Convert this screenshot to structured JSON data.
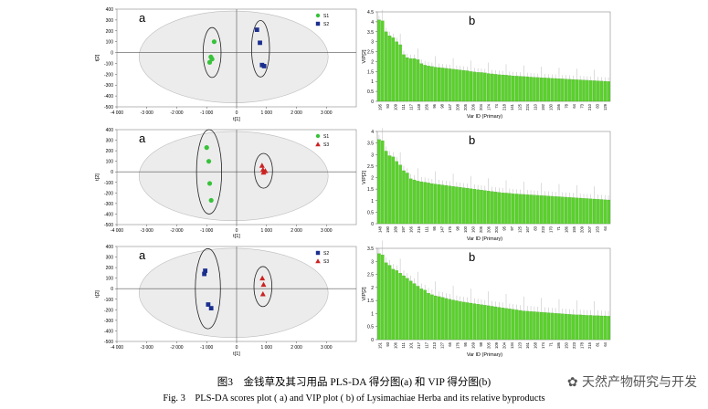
{
  "caption": {
    "zh": "图3　金钱草及其习用品 PLS-DA 得分图(a) 和 VIP 得分图(b)",
    "en": "Fig. 3　PLS-DA scores plot ( a)  and VIP plot ( b)  of Lysimachiae Herba and its relative byproducts"
  },
  "watermark": "天然产物研究与开发",
  "colors": {
    "S1": "#37c23a",
    "S2": "#1b2f8f",
    "S3": "#cc2222",
    "bar": "#5ad12c",
    "ellipse": "#ececec"
  },
  "chart_data": [
    {
      "type": "scatter",
      "panel_label": "a",
      "xlabel": "t[1]",
      "ylabel": "t[2]",
      "xlim": [
        -4000,
        4000
      ],
      "ylim": [
        -500,
        400
      ],
      "xticks": [
        -4000,
        -3000,
        -2000,
        -1000,
        0,
        1000,
        2000,
        3000
      ],
      "yticks": [
        -500,
        -400,
        -300,
        -200,
        -100,
        0,
        100,
        200,
        300,
        400
      ],
      "legend": [
        "S1",
        "S2"
      ],
      "series": [
        {
          "name": "S1",
          "marker": "circle",
          "color": "#37c23a",
          "points": [
            [
              -750,
              100
            ],
            [
              -860,
              -40
            ],
            [
              -820,
              -60
            ],
            [
              -900,
              -90
            ]
          ]
        },
        {
          "name": "S2",
          "marker": "square",
          "color": "#1b2f8f",
          "points": [
            [
              680,
              210
            ],
            [
              780,
              90
            ],
            [
              850,
              -115
            ],
            [
              920,
              -125
            ]
          ]
        }
      ],
      "ellipses": [
        {
          "cx": -820,
          "cy": 0,
          "rx": 300,
          "ry": 230
        },
        {
          "cx": 800,
          "cy": 35,
          "rx": 300,
          "ry": 260
        }
      ]
    },
    {
      "type": "bar",
      "panel_label": "b",
      "xlabel": "Var ID (Primary)",
      "ylabel": "VIP[2]",
      "ylim": [
        0,
        4.5
      ],
      "yticks": [
        0,
        0.5,
        1,
        1.5,
        2,
        2.5,
        3,
        3.5,
        4,
        4.5
      ],
      "tick_labels": [
        "195",
        "93",
        "109",
        "111",
        "117",
        "148",
        "156",
        "96",
        "98",
        "147",
        "208",
        "205",
        "206",
        "204",
        "174",
        "74",
        "218",
        "141",
        "125",
        "224",
        "110",
        "192",
        "130",
        "156",
        "78",
        "64",
        "73",
        "210",
        "83",
        "129"
      ],
      "values": [
        4.1,
        4.05,
        3.5,
        3.3,
        3.2,
        3.0,
        2.85,
        2.35,
        2.2,
        2.15,
        2.15,
        2.1,
        1.9,
        1.82,
        1.78,
        1.75,
        1.72,
        1.7,
        1.68,
        1.66,
        1.64,
        1.62,
        1.6,
        1.58,
        1.56,
        1.54,
        1.5,
        1.48,
        1.46,
        1.45,
        1.43,
        1.4,
        1.38,
        1.36,
        1.34,
        1.33,
        1.32,
        1.3,
        1.28,
        1.27,
        1.26,
        1.25,
        1.24,
        1.22,
        1.21,
        1.2,
        1.19,
        1.18,
        1.17,
        1.16,
        1.15,
        1.14,
        1.13,
        1.12,
        1.11,
        1.1,
        1.09,
        1.08,
        1.07,
        1.06,
        1.05,
        1.04,
        1.03,
        1.02,
        1.01,
        1.0
      ]
    },
    {
      "type": "scatter",
      "panel_label": "a",
      "xlabel": "t[1]",
      "ylabel": "t[2]",
      "xlim": [
        -4000,
        4000
      ],
      "ylim": [
        -500,
        400
      ],
      "xticks": [
        -4000,
        -3000,
        -2000,
        -1000,
        0,
        1000,
        2000,
        3000
      ],
      "yticks": [
        -500,
        -400,
        -300,
        -200,
        -100,
        0,
        100,
        200,
        300,
        400
      ],
      "legend": [
        "S1",
        "S3"
      ],
      "series": [
        {
          "name": "S1",
          "marker": "circle",
          "color": "#37c23a",
          "points": [
            [
              -1000,
              230
            ],
            [
              -930,
              100
            ],
            [
              -900,
              -110
            ],
            [
              -850,
              -270
            ]
          ]
        },
        {
          "name": "S3",
          "marker": "triangle",
          "color": "#cc2222",
          "points": [
            [
              850,
              60
            ],
            [
              880,
              20
            ],
            [
              900,
              -5
            ],
            [
              960,
              10
            ]
          ]
        }
      ],
      "ellipses": [
        {
          "cx": -920,
          "cy": 0,
          "rx": 420,
          "ry": 400
        },
        {
          "cx": 900,
          "cy": 10,
          "rx": 300,
          "ry": 165
        }
      ]
    },
    {
      "type": "bar",
      "panel_label": "b",
      "xlabel": "Var ID (Primary)",
      "ylabel": "VIP[2]",
      "ylim": [
        0,
        4
      ],
      "yticks": [
        0,
        0.5,
        1,
        1.5,
        2,
        2.5,
        3,
        3.5,
        4
      ],
      "tick_labels": [
        "148",
        "190",
        "189",
        "197",
        "166",
        "216",
        "111",
        "95",
        "147",
        "175",
        "98",
        "100",
        "160",
        "205",
        "206",
        "204",
        "95",
        "97",
        "125",
        "167",
        "83",
        "223",
        "170",
        "71",
        "186",
        "155",
        "209",
        "207",
        "153",
        "64"
      ],
      "values": [
        3.65,
        3.6,
        3.15,
        2.95,
        2.9,
        2.7,
        2.55,
        2.3,
        2.2,
        1.95,
        1.9,
        1.85,
        1.82,
        1.8,
        1.77,
        1.74,
        1.72,
        1.7,
        1.68,
        1.66,
        1.64,
        1.62,
        1.6,
        1.58,
        1.56,
        1.54,
        1.52,
        1.5,
        1.48,
        1.46,
        1.44,
        1.42,
        1.4,
        1.38,
        1.36,
        1.34,
        1.33,
        1.32,
        1.3,
        1.29,
        1.28,
        1.27,
        1.26,
        1.25,
        1.24,
        1.23,
        1.22,
        1.21,
        1.2,
        1.19,
        1.18,
        1.17,
        1.16,
        1.15,
        1.14,
        1.13,
        1.12,
        1.11,
        1.1,
        1.09,
        1.08,
        1.07,
        1.06,
        1.05,
        1.04,
        1.03
      ]
    },
    {
      "type": "scatter",
      "panel_label": "a",
      "xlabel": "t[1]",
      "ylabel": "t[2]",
      "xlim": [
        -4000,
        4000
      ],
      "ylim": [
        -500,
        400
      ],
      "xticks": [
        -4000,
        -3000,
        -2000,
        -1000,
        0,
        1000,
        2000,
        3000
      ],
      "yticks": [
        -500,
        -400,
        -300,
        -200,
        -100,
        0,
        100,
        200,
        300,
        400
      ],
      "legend": [
        "S2",
        "S3"
      ],
      "series": [
        {
          "name": "S2",
          "marker": "square",
          "color": "#1b2f8f",
          "points": [
            [
              -1050,
              170
            ],
            [
              -1080,
              140
            ],
            [
              -950,
              -150
            ],
            [
              -850,
              -185
            ]
          ]
        },
        {
          "name": "S3",
          "marker": "triangle",
          "color": "#cc2222",
          "points": [
            [
              860,
              100
            ],
            [
              900,
              40
            ],
            [
              880,
              -50
            ]
          ]
        }
      ],
      "ellipses": [
        {
          "cx": -960,
          "cy": 0,
          "rx": 420,
          "ry": 380
        },
        {
          "cx": 880,
          "cy": 20,
          "rx": 300,
          "ry": 190
        }
      ]
    },
    {
      "type": "bar",
      "panel_label": "b",
      "xlabel": "Var ID (Primary)",
      "ylabel": "VIP[2]",
      "ylim": [
        0,
        3.5
      ],
      "yticks": [
        0,
        0.5,
        1,
        1.5,
        2,
        2.5,
        3,
        3.5
      ],
      "tick_labels": [
        "151",
        "93",
        "106",
        "111",
        "101",
        "217",
        "117",
        "213",
        "127",
        "65",
        "176",
        "95",
        "169",
        "98",
        "205",
        "109",
        "204",
        "134",
        "123",
        "161",
        "168",
        "174",
        "71",
        "186",
        "150",
        "223",
        "178",
        "215",
        "81",
        "64"
      ],
      "values": [
        3.3,
        3.25,
        2.95,
        2.85,
        2.7,
        2.65,
        2.55,
        2.45,
        2.35,
        2.25,
        2.15,
        2.05,
        1.95,
        1.9,
        1.78,
        1.72,
        1.68,
        1.65,
        1.62,
        1.58,
        1.55,
        1.52,
        1.49,
        1.46,
        1.44,
        1.42,
        1.4,
        1.38,
        1.36,
        1.34,
        1.32,
        1.3,
        1.28,
        1.26,
        1.24,
        1.22,
        1.2,
        1.18,
        1.16,
        1.14,
        1.12,
        1.1,
        1.09,
        1.08,
        1.07,
        1.06,
        1.05,
        1.04,
        1.03,
        1.02,
        1.01,
        1.0,
        0.99,
        0.98,
        0.97,
        0.96,
        0.95,
        0.95,
        0.94,
        0.93,
        0.93,
        0.92,
        0.92,
        0.91,
        0.91,
        0.9
      ]
    }
  ]
}
